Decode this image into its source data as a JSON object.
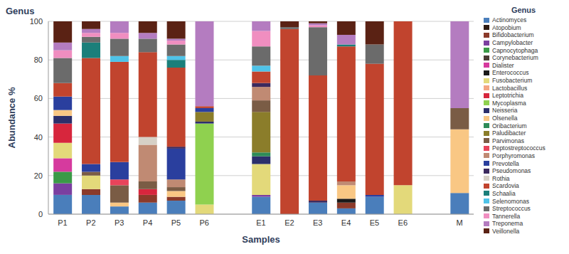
{
  "chart_data": {
    "type": "bar",
    "title": "Genus",
    "legend_title": "Genus",
    "x_label": "Samples",
    "y_label": "Abundance %",
    "categories": [
      "P1",
      "P2",
      "P3",
      "P4",
      "P5",
      "P6",
      null,
      "E1",
      "E2",
      "E3",
      "E4",
      "E5",
      "E6",
      null,
      "M"
    ],
    "ylim": [
      0,
      100
    ],
    "yticks": [
      0,
      20,
      40,
      60,
      80,
      100
    ],
    "grid": true,
    "stacked": true,
    "legend": "right",
    "series": [
      {
        "name": "Actinomyces",
        "color": "#4a7ebb",
        "values": [
          10,
          10,
          4,
          6,
          7,
          0,
          null,
          9,
          0,
          6,
          3,
          9,
          0,
          null,
          11
        ]
      },
      {
        "name": "Atopobium",
        "color": "#2e1a12",
        "values": [
          0,
          0,
          0,
          0,
          0,
          0,
          null,
          0,
          0,
          0,
          0,
          0,
          0,
          null,
          0
        ]
      },
      {
        "name": "Bifidobacterium",
        "color": "#8b3a2a",
        "values": [
          0,
          3,
          0,
          4,
          2,
          0,
          null,
          0,
          0,
          0,
          3,
          0,
          0,
          null,
          0
        ]
      },
      {
        "name": "Campylobacter",
        "color": "#7b3fa0",
        "values": [
          6,
          0,
          0,
          0,
          0,
          0,
          null,
          1,
          0,
          0,
          0,
          0,
          0,
          null,
          0
        ]
      },
      {
        "name": "Capnocytophaga",
        "color": "#3a9a47",
        "values": [
          6,
          0,
          0,
          0,
          0,
          0,
          null,
          0,
          0,
          0,
          0,
          0,
          0,
          null,
          0
        ]
      },
      {
        "name": "Corynebacterium",
        "color": "#4b3b35",
        "values": [
          0,
          0,
          0,
          0,
          0,
          0,
          null,
          0,
          0,
          0,
          0,
          0,
          0,
          null,
          0
        ]
      },
      {
        "name": "Dialister",
        "color": "#d63a9e",
        "values": [
          7,
          0,
          0,
          0,
          0,
          0,
          null,
          0,
          0,
          0,
          0,
          0,
          0,
          null,
          0
        ]
      },
      {
        "name": "Enterococcus",
        "color": "#1a1a1a",
        "values": [
          0,
          0,
          0,
          0,
          0,
          0,
          null,
          0,
          0,
          0,
          2,
          0,
          0,
          null,
          0
        ]
      },
      {
        "name": "Fusobacterium",
        "color": "#e3d97a",
        "values": [
          8,
          7,
          0,
          0,
          0,
          5,
          null,
          16,
          0,
          0,
          0,
          0,
          15,
          null,
          0
        ]
      },
      {
        "name": "Lactobacillus",
        "color": "#f4a582",
        "values": [
          0,
          0,
          0,
          0,
          0,
          0,
          null,
          0,
          0,
          0,
          0,
          0,
          0,
          null,
          0
        ]
      },
      {
        "name": "Leptotrichia",
        "color": "#d7263d",
        "values": [
          10,
          0,
          0,
          3,
          0,
          0,
          null,
          0,
          0,
          0,
          0,
          0,
          0,
          null,
          0
        ]
      },
      {
        "name": "Mycoplasma",
        "color": "#8fd14f",
        "values": [
          0,
          0,
          0,
          0,
          0,
          42,
          null,
          0,
          0,
          0,
          0,
          0,
          0,
          null,
          0
        ]
      },
      {
        "name": "Neisseria",
        "color": "#2c2f6b",
        "values": [
          4,
          0,
          0,
          0,
          0,
          1,
          null,
          4,
          0,
          0,
          0,
          0,
          0,
          null,
          0
        ]
      },
      {
        "name": "Olsenella",
        "color": "#f9c784",
        "values": [
          3,
          0,
          2,
          0,
          3,
          0,
          null,
          0,
          0,
          0,
          7,
          0,
          0,
          null,
          33
        ]
      },
      {
        "name": "Oribacterium",
        "color": "#2e8b57",
        "values": [
          0,
          0,
          0,
          0,
          0,
          0,
          null,
          2,
          0,
          0,
          0,
          0,
          0,
          null,
          0
        ]
      },
      {
        "name": "Paludibacter",
        "color": "#8b7d2a",
        "values": [
          0,
          0,
          0,
          0,
          0,
          5,
          null,
          21,
          0,
          0,
          0,
          0,
          0,
          null,
          0
        ]
      },
      {
        "name": "Parvimonas",
        "color": "#7a5c45",
        "values": [
          0,
          2,
          9,
          4,
          2,
          0,
          null,
          6,
          0,
          0,
          0,
          0,
          0,
          null,
          11
        ]
      },
      {
        "name": "Peptostreptococcus",
        "color": "#e8435a",
        "values": [
          0,
          0,
          3,
          0,
          0,
          0,
          null,
          0,
          0,
          0,
          0,
          0,
          0,
          null,
          0
        ]
      },
      {
        "name": "Porphyromonas",
        "color": "#c08a73",
        "values": [
          0,
          0,
          0,
          19,
          4,
          0,
          null,
          7,
          0,
          0,
          2,
          0,
          0,
          null,
          0
        ]
      },
      {
        "name": "Prevotella",
        "color": "#2a3f9e",
        "values": [
          7,
          4,
          9,
          0,
          16,
          2,
          null,
          0,
          0,
          0,
          0,
          1,
          0,
          null,
          0
        ]
      },
      {
        "name": "Pseudomonas",
        "color": "#3b2a5e",
        "values": [
          0,
          0,
          0,
          0,
          1,
          0,
          null,
          2,
          0,
          1,
          0,
          0,
          0,
          null,
          0
        ]
      },
      {
        "name": "Rothia",
        "color": "#d6d0c6",
        "values": [
          0,
          0,
          0,
          4,
          0,
          0,
          null,
          0,
          0,
          0,
          0,
          0,
          0,
          null,
          0
        ]
      },
      {
        "name": "Scardovia",
        "color": "#c1442e",
        "values": [
          7,
          55,
          52,
          44,
          41,
          1,
          null,
          6,
          96,
          65,
          70,
          68,
          85,
          null,
          0
        ]
      },
      {
        "name": "Schaalia",
        "color": "#1b7f7a",
        "values": [
          0,
          8,
          0,
          0,
          4,
          0,
          null,
          0,
          0,
          0,
          1,
          0,
          0,
          null,
          0
        ]
      },
      {
        "name": "Selenomonas",
        "color": "#4fc3e8",
        "values": [
          0,
          0,
          3,
          0,
          2,
          0,
          null,
          3,
          0,
          0,
          0,
          0,
          0,
          null,
          0
        ]
      },
      {
        "name": "Streptococcus",
        "color": "#6b6b6b",
        "values": [
          13,
          3,
          9,
          7,
          6,
          0,
          null,
          10,
          1,
          25,
          0,
          10,
          0,
          null,
          0
        ]
      },
      {
        "name": "Tannerella",
        "color": "#f08ec0",
        "values": [
          4,
          2,
          3,
          0,
          2,
          0,
          null,
          8,
          0,
          1,
          0,
          0,
          0,
          null,
          0
        ]
      },
      {
        "name": "Treponema",
        "color": "#b47cc0",
        "values": [
          4,
          2,
          6,
          3,
          1,
          44,
          null,
          5,
          0,
          1,
          5,
          0,
          0,
          null,
          45
        ]
      },
      {
        "name": "Veillonella",
        "color": "#5a2214",
        "values": [
          11,
          4,
          0,
          6,
          9,
          0,
          null,
          0,
          3,
          1,
          7,
          12,
          0,
          null,
          0
        ]
      }
    ]
  }
}
